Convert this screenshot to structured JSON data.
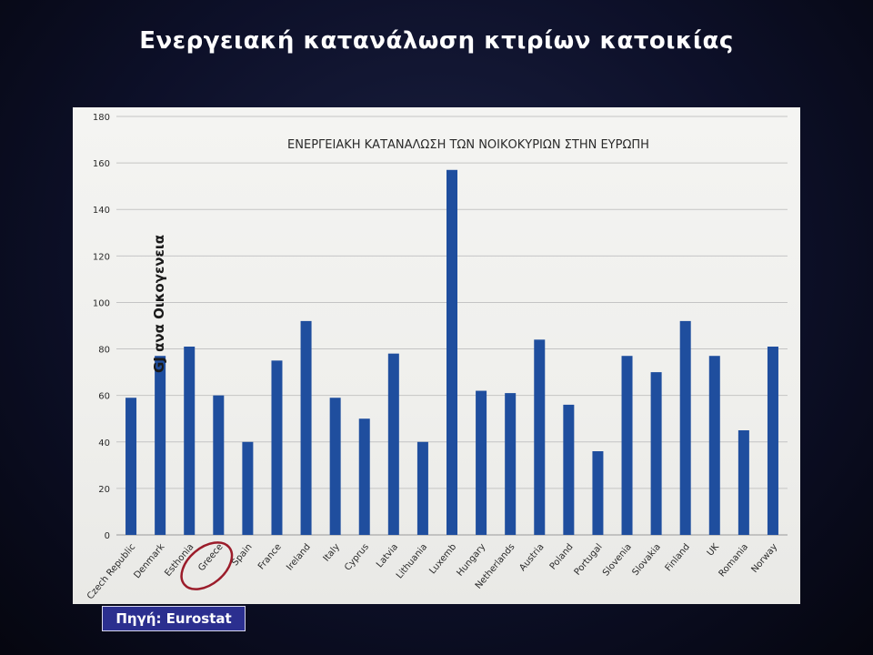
{
  "slide": {
    "title": "Ενεργειακή κατανάλωση κτιρίων κατοικίας",
    "source": "Πηγή: Eurostat"
  },
  "colors": {
    "bar": "#1f4e9e",
    "highlight_ring": "#9b1c2a"
  },
  "chart_data": {
    "type": "bar",
    "title": "ΕΝΕΡΓΕΙΑΚΗ ΚΑΤΑΝΑΛΩΣΗ ΤΩΝ ΝΟΙΚΟΚΥΡΙΩΝ ΣΤΗΝ ΕΥΡΩΠΗ",
    "ylabel": "GJ ανα Οικογενεια",
    "xlabel": "",
    "ylim": [
      0,
      180
    ],
    "yticks": [
      0,
      20,
      40,
      60,
      80,
      100,
      120,
      140,
      160,
      180
    ],
    "grid": true,
    "highlighted_category": "Greece",
    "categories": [
      "Czech Republic",
      "Denmark",
      "Esthonia",
      "Greece",
      "Spain",
      "France",
      "Ireland",
      "Italy",
      "Cyprus",
      "Latvia",
      "Lithuania",
      "Luxemb",
      "Hungary",
      "Netherlands",
      "Austria",
      "Poland",
      "Portugal",
      "Slovenia",
      "Slovakia",
      "Finland",
      "UK",
      "Romania",
      "Norway"
    ],
    "values": [
      59,
      77,
      81,
      60,
      40,
      75,
      92,
      59,
      50,
      78,
      40,
      157,
      62,
      61,
      84,
      56,
      36,
      77,
      70,
      92,
      77,
      45,
      81
    ]
  }
}
